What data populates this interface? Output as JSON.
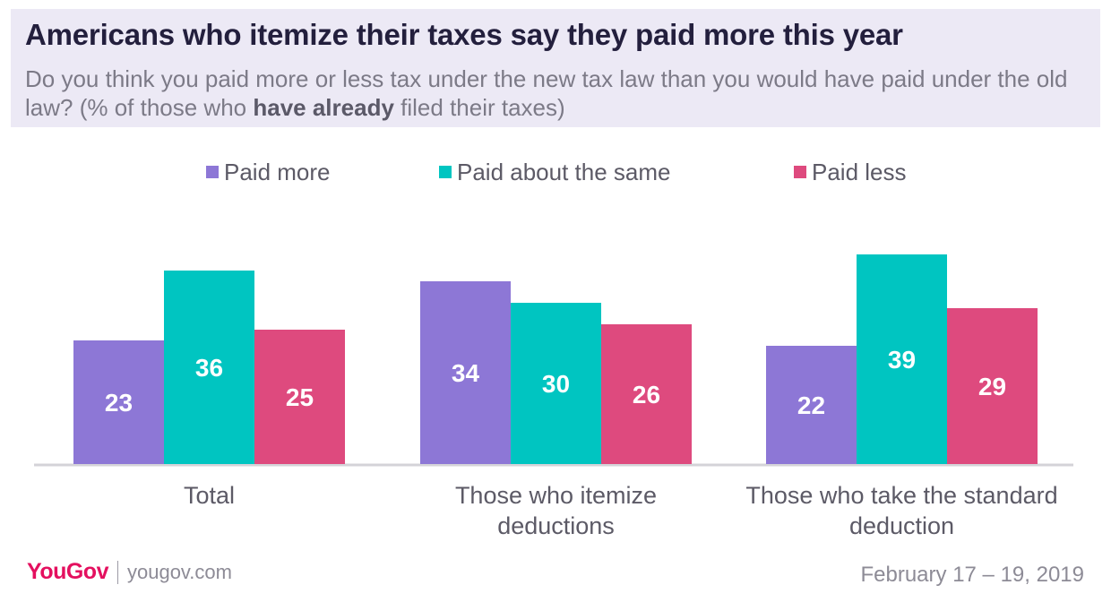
{
  "header": {
    "title": "Americans who itemize their taxes say they paid more this year",
    "subtitle_part1": "Do you think you paid more or less tax under the new tax law than you would have paid under the old law? (% of those who ",
    "subtitle_bold": "have already",
    "subtitle_part2": " filed their taxes)"
  },
  "legend": [
    {
      "label": "Paid more",
      "color": "#8d77d6"
    },
    {
      "label": "Paid about the same",
      "color": "#00c5c1"
    },
    {
      "label": "Paid less",
      "color": "#de4a7e"
    }
  ],
  "chart_data": {
    "type": "bar",
    "title": "Americans who itemize their taxes say they paid more this year",
    "categories": [
      "Total",
      "Those who itemize deductions",
      "Those who take the standard deduction"
    ],
    "category_lines": [
      [
        "Total"
      ],
      [
        "Those who itemize",
        "deductions"
      ],
      [
        "Those who take the standard",
        "deduction"
      ]
    ],
    "series": [
      {
        "name": "Paid more",
        "values": [
          23,
          34,
          22
        ],
        "color": "#8d77d6"
      },
      {
        "name": "Paid about the same",
        "values": [
          36,
          30,
          39
        ],
        "color": "#00c5c1"
      },
      {
        "name": "Paid less",
        "values": [
          25,
          26,
          29
        ],
        "color": "#de4a7e"
      }
    ],
    "ylim": [
      0,
      40
    ],
    "grid": false,
    "legend_position": "top"
  },
  "footer": {
    "brand": "YouGov",
    "url": "yougov.com",
    "date": "February 17 – 19, 2019"
  }
}
